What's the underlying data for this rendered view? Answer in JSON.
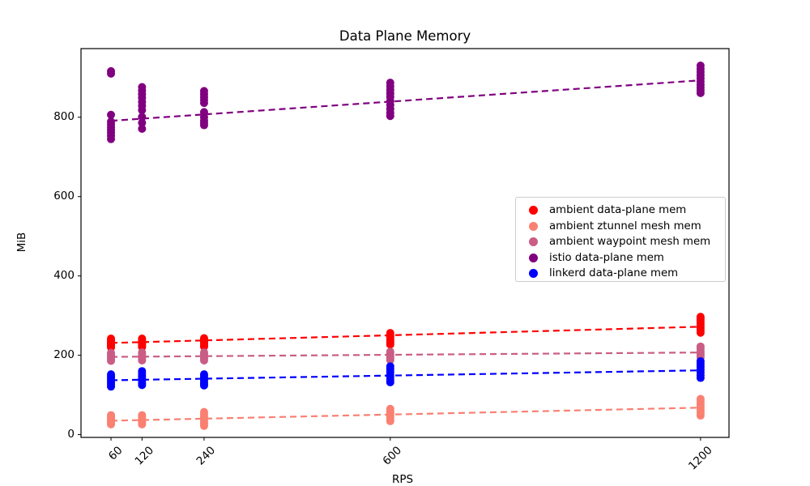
{
  "chart_data": {
    "type": "scatter",
    "title": "Data Plane Memory",
    "xlabel": "RPS",
    "ylabel": "MiB",
    "x_ticks": [
      60,
      120,
      240,
      600,
      1200
    ],
    "y_ticks": [
      0,
      200,
      400,
      600,
      800
    ],
    "xlim": [
      2,
      1255
    ],
    "ylim": [
      -7,
      973
    ],
    "grid": false,
    "legend_position": "center right",
    "marker_radius": 5,
    "axis_color": "#000000",
    "series": [
      {
        "name": "ambient data-plane mem",
        "color": "#ff0000",
        "trend": {
          "x": [
            60,
            1200
          ],
          "y": [
            231,
            272
          ]
        },
        "points": {
          "60": [
            242,
            238,
            235,
            232,
            229,
            226,
            223,
            220
          ],
          "120": [
            242,
            239,
            236,
            233,
            230,
            227,
            224,
            221
          ],
          "240": [
            243,
            240,
            237,
            234,
            231,
            228,
            225,
            222
          ],
          "600": [
            256,
            251,
            247,
            243,
            239,
            235,
            231,
            227
          ],
          "1200": [
            297,
            292,
            287,
            281,
            275,
            269,
            263,
            257
          ]
        }
      },
      {
        "name": "ambient ztunnel mesh mem",
        "color": "#fa8072",
        "trend": {
          "x": [
            60,
            1200
          ],
          "y": [
            35,
            68
          ]
        },
        "points": {
          "60": [
            49,
            45,
            41,
            37,
            33,
            29,
            26
          ],
          "120": [
            49,
            45,
            41,
            37,
            33,
            30,
            26
          ],
          "240": [
            57,
            51,
            45,
            39,
            33,
            27,
            22
          ],
          "600": [
            65,
            59,
            54,
            49,
            44,
            39,
            34
          ],
          "1200": [
            90,
            83,
            76,
            69,
            62,
            55,
            48
          ]
        }
      },
      {
        "name": "ambient waypoint mesh mem",
        "color": "#c95d85",
        "trend": {
          "x": [
            60,
            1200
          ],
          "y": [
            196,
            207
          ]
        },
        "points": {
          "60": [
            206,
            202,
            198,
            194,
            190,
            186
          ],
          "120": [
            207,
            203,
            199,
            195,
            191,
            187
          ],
          "240": [
            207,
            203,
            199,
            195,
            191,
            187
          ],
          "600": [
            209,
            205,
            200,
            196,
            192,
            188
          ],
          "1200": [
            222,
            216,
            210,
            205,
            200,
            195
          ]
        }
      },
      {
        "name": "istio data-plane mem",
        "color": "#800080",
        "trend": {
          "x": [
            60,
            1200
          ],
          "y": [
            791,
            893
          ]
        },
        "points": {
          "60": [
            916,
            910,
            806,
            789,
            782,
            775,
            768,
            761,
            753,
            745
          ],
          "120": [
            876,
            867,
            858,
            849,
            839,
            829,
            818,
            801,
            786,
            771
          ],
          "240": [
            866,
            858,
            850,
            843,
            836,
            813,
            800,
            792,
            786,
            780
          ],
          "600": [
            887,
            878,
            869,
            860,
            851,
            841,
            831,
            821,
            811,
            803
          ],
          "1200": [
            930,
            922,
            914,
            906,
            898,
            890,
            882,
            875,
            868,
            861
          ]
        }
      },
      {
        "name": "linkerd data-plane mem",
        "color": "#0000ff",
        "trend": {
          "x": [
            60,
            1200
          ],
          "y": [
            137,
            162
          ]
        },
        "points": {
          "60": [
            152,
            147,
            142,
            137,
            132,
            127,
            121
          ],
          "120": [
            160,
            154,
            148,
            142,
            136,
            130,
            125
          ],
          "240": [
            152,
            148,
            143,
            138,
            133,
            128,
            124
          ],
          "600": [
            172,
            165,
            158,
            151,
            145,
            138,
            132
          ],
          "1200": [
            185,
            178,
            171,
            164,
            157,
            150,
            143
          ]
        }
      }
    ]
  }
}
